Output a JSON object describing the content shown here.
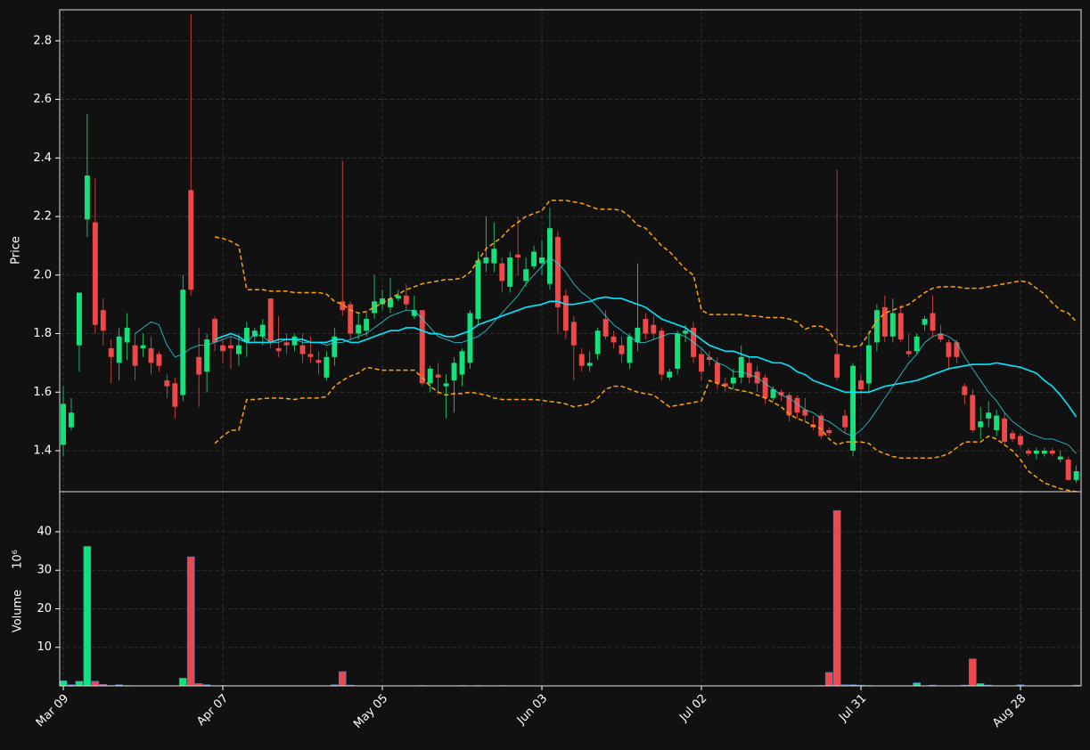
{
  "chart_data": {
    "type": "candlestick",
    "ylabel": "Price",
    "y2label": "Volume",
    "y2_offset": "10⁶",
    "up_color": "#16e07a",
    "down_color": "#ef4848",
    "volume_edge_color": "#4a78c8",
    "grid": true,
    "xlim": [
      -0.45,
      127.6
    ],
    "xticks": [
      {
        "value": 0,
        "label": "Mar 09"
      },
      {
        "value": 20,
        "label": "Apr 07"
      },
      {
        "value": 40,
        "label": "May 05"
      },
      {
        "value": 60,
        "label": "Jun 03"
      },
      {
        "value": 80,
        "label": "Jul 02"
      },
      {
        "value": 100,
        "label": "Jul 31"
      },
      {
        "value": 120,
        "label": "Aug 28"
      }
    ],
    "ylim": [
      1.26,
      2.906
    ],
    "yticks": [
      1.4,
      1.6,
      1.8,
      {
        "value": 2,
        "label": "2.0"
      },
      2.2,
      2.4,
      2.6,
      2.8
    ],
    "y2lim": [
      0,
      50.4
    ],
    "y2ticks": [
      10,
      20,
      30,
      40
    ],
    "open": [
      1.42,
      1.48,
      1.76,
      2.19,
      2.18,
      1.88,
      1.75,
      1.7,
      1.77,
      1.76,
      1.75,
      1.75,
      1.73,
      1.64,
      1.63,
      1.59,
      2.29,
      1.72,
      1.67,
      1.85,
      1.76,
      1.76,
      1.73,
      1.77,
      1.79,
      1.79,
      1.92,
      1.75,
      1.77,
      1.76,
      1.76,
      1.73,
      1.71,
      1.65,
      1.72,
      1.91,
      1.9,
      1.8,
      1.81,
      1.87,
      1.9,
      1.89,
      1.92,
      1.93,
      1.86,
      1.88,
      1.63,
      1.66,
      1.62,
      1.64,
      1.66,
      1.7,
      1.85,
      2.04,
      2.04,
      2.04,
      1.96,
      2.07,
      1.98,
      2.03,
      2.04,
      1.97,
      2.13,
      1.93,
      1.84,
      1.73,
      1.69,
      1.73,
      1.85,
      1.79,
      1.76,
      1.7,
      1.77,
      1.85,
      1.83,
      1.81,
      1.65,
      1.68,
      1.8,
      1.82,
      1.73,
      1.72,
      1.7,
      1.63,
      1.63,
      1.65,
      1.7,
      1.67,
      1.65,
      1.58,
      1.6,
      1.59,
      1.58,
      1.54,
      1.49,
      1.52,
      1.47,
      1.73,
      1.52,
      1.4,
      1.64,
      1.63,
      1.77,
      1.89,
      1.79,
      1.87,
      1.74,
      1.74,
      1.83,
      1.87,
      1.8,
      1.77,
      1.77,
      1.62,
      1.59,
      1.48,
      1.51,
      1.47,
      1.51,
      1.46,
      1.45,
      1.4,
      1.39,
      1.39,
      1.4,
      1.37,
      1.37,
      1.3
    ],
    "high": [
      1.62,
      1.58,
      1.94,
      2.55,
      2.33,
      1.92,
      1.78,
      1.82,
      1.87,
      1.8,
      1.8,
      1.79,
      1.74,
      1.66,
      1.65,
      2.0,
      2.89,
      1.82,
      1.8,
      1.86,
      1.78,
      1.79,
      1.8,
      1.84,
      1.82,
      1.85,
      1.92,
      1.86,
      1.8,
      1.8,
      1.8,
      1.79,
      1.74,
      1.74,
      1.82,
      2.39,
      1.91,
      1.87,
      1.87,
      2.0,
      1.95,
      1.99,
      1.95,
      1.97,
      1.93,
      1.88,
      1.69,
      1.7,
      1.66,
      1.72,
      1.75,
      1.88,
      2.08,
      2.2,
      2.18,
      2.06,
      2.08,
      2.2,
      2.06,
      2.1,
      2.12,
      2.23,
      2.15,
      1.95,
      1.86,
      1.75,
      1.74,
      1.82,
      1.88,
      1.81,
      1.79,
      1.8,
      2.04,
      1.87,
      1.86,
      1.82,
      1.68,
      1.81,
      1.83,
      1.84,
      1.75,
      1.74,
      1.72,
      1.65,
      1.68,
      1.76,
      1.72,
      1.69,
      1.66,
      1.62,
      1.61,
      1.6,
      1.59,
      1.58,
      1.52,
      1.53,
      1.48,
      2.36,
      1.54,
      1.7,
      1.66,
      1.81,
      1.9,
      1.93,
      1.92,
      1.9,
      1.8,
      1.8,
      1.86,
      1.93,
      1.83,
      1.78,
      1.78,
      1.63,
      1.61,
      1.55,
      1.57,
      1.54,
      1.53,
      1.47,
      1.46,
      1.41,
      1.41,
      1.41,
      1.41,
      1.4,
      1.38,
      1.35
    ],
    "low": [
      1.38,
      1.47,
      1.67,
      2.13,
      1.8,
      1.76,
      1.63,
      1.64,
      1.71,
      1.64,
      1.72,
      1.66,
      1.67,
      1.58,
      1.51,
      1.57,
      1.93,
      1.55,
      1.6,
      1.74,
      1.7,
      1.68,
      1.69,
      1.72,
      1.77,
      1.76,
      1.75,
      1.72,
      1.73,
      1.74,
      1.7,
      1.7,
      1.66,
      1.64,
      1.69,
      1.86,
      1.78,
      1.78,
      1.79,
      1.85,
      1.88,
      1.87,
      1.91,
      1.88,
      1.85,
      1.62,
      1.6,
      1.59,
      1.51,
      1.53,
      1.62,
      1.68,
      1.83,
      2.01,
      2.01,
      1.94,
      1.94,
      2.0,
      1.96,
      2.02,
      2.0,
      1.95,
      1.8,
      1.78,
      1.64,
      1.67,
      1.67,
      1.71,
      1.78,
      1.75,
      1.7,
      1.68,
      1.74,
      1.78,
      1.78,
      1.64,
      1.64,
      1.66,
      1.77,
      1.7,
      1.64,
      1.69,
      1.61,
      1.6,
      1.61,
      1.63,
      1.63,
      1.6,
      1.56,
      1.57,
      1.57,
      1.5,
      1.51,
      1.5,
      1.47,
      1.44,
      1.45,
      1.64,
      1.46,
      1.38,
      1.59,
      1.6,
      1.74,
      1.77,
      1.77,
      1.77,
      1.72,
      1.73,
      1.81,
      1.79,
      1.77,
      1.68,
      1.7,
      1.56,
      1.46,
      1.44,
      1.48,
      1.45,
      1.42,
      1.43,
      1.41,
      1.38,
      1.37,
      1.38,
      1.38,
      1.36,
      1.3,
      1.29
    ],
    "close": [
      1.56,
      1.53,
      1.94,
      2.34,
      1.83,
      1.81,
      1.72,
      1.79,
      1.82,
      1.69,
      1.76,
      1.7,
      1.69,
      1.62,
      1.55,
      1.95,
      1.95,
      1.66,
      1.78,
      1.77,
      1.74,
      1.75,
      1.76,
      1.82,
      1.81,
      1.83,
      1.77,
      1.74,
      1.76,
      1.79,
      1.73,
      1.72,
      1.7,
      1.72,
      1.79,
      1.88,
      1.8,
      1.83,
      1.85,
      1.91,
      1.92,
      1.92,
      1.93,
      1.9,
      1.88,
      1.63,
      1.68,
      1.65,
      1.63,
      1.7,
      1.74,
      1.87,
      2.05,
      2.06,
      2.09,
      1.98,
      2.06,
      2.06,
      2.02,
      2.08,
      2.06,
      2.16,
      1.89,
      1.81,
      1.76,
      1.69,
      1.7,
      1.81,
      1.79,
      1.77,
      1.73,
      1.79,
      1.82,
      1.8,
      1.8,
      1.66,
      1.67,
      1.8,
      1.81,
      1.72,
      1.67,
      1.71,
      1.63,
      1.62,
      1.65,
      1.72,
      1.65,
      1.63,
      1.58,
      1.61,
      1.59,
      1.52,
      1.53,
      1.52,
      1.48,
      1.45,
      1.46,
      1.65,
      1.48,
      1.69,
      1.61,
      1.76,
      1.88,
      1.79,
      1.87,
      1.78,
      1.73,
      1.79,
      1.85,
      1.81,
      1.78,
      1.72,
      1.72,
      1.59,
      1.47,
      1.5,
      1.53,
      1.52,
      1.43,
      1.44,
      1.42,
      1.39,
      1.4,
      1.4,
      1.39,
      1.38,
      1.3,
      1.33
    ],
    "volume": [
      1.3,
      0.3,
      1.2,
      36.2,
      1.2,
      0.4,
      0.1,
      0.3,
      0.1,
      0.05,
      0.05,
      0.05,
      0.05,
      0.05,
      0.05,
      2.0,
      33.5,
      0.6,
      0.3,
      0.05,
      0.1,
      0.05,
      0.05,
      0.05,
      0.05,
      0.05,
      0.05,
      0.05,
      0.05,
      0.05,
      0.05,
      0.05,
      0.05,
      0.05,
      0.3,
      3.7,
      0.2,
      0.05,
      0.05,
      0.05,
      0.05,
      0.05,
      0.05,
      0.05,
      0.05,
      0.1,
      0.05,
      0.05,
      0.05,
      0.05,
      0.1,
      0.05,
      0.1,
      0.05,
      0.05,
      0.1,
      0.05,
      0.05,
      0.05,
      0.05,
      0.05,
      0.05,
      0.05,
      0.05,
      0.05,
      0.05,
      0.05,
      0.05,
      0.05,
      0.05,
      0.05,
      0.05,
      0.05,
      0.05,
      0.05,
      0.05,
      0.05,
      0.05,
      0.05,
      0.05,
      0.05,
      0.05,
      0.05,
      0.05,
      0.05,
      0.05,
      0.05,
      0.05,
      0.05,
      0.05,
      0.05,
      0.05,
      0.05,
      0.05,
      0.05,
      0.1,
      3.5,
      45.5,
      0.3,
      0.3,
      0.2,
      0.1,
      0.05,
      0.05,
      0.05,
      0.05,
      0.05,
      0.8,
      0.05,
      0.2,
      0.05,
      0.05,
      0.05,
      0.2,
      7.0,
      0.6,
      0.2,
      0.05,
      0.05,
      0.05,
      0.3,
      0.05,
      0.05,
      0.05,
      0.05,
      0.05,
      0.05,
      0.2
    ],
    "lines": [
      {
        "color": "#26d4e0",
        "width": 0.8,
        "dashed": false,
        "values": [
          null,
          null,
          null,
          null,
          null,
          null,
          null,
          null,
          null,
          1.8,
          1.82,
          1.84,
          1.83,
          1.76,
          1.72,
          1.73,
          1.75,
          1.76,
          1.76,
          1.77,
          1.78,
          1.79,
          1.78,
          1.77,
          1.8,
          1.79,
          1.77,
          1.77,
          1.78,
          1.78,
          1.77,
          1.77,
          1.77,
          1.76,
          1.77,
          1.77,
          1.78,
          1.79,
          1.8,
          1.82,
          1.84,
          1.86,
          1.87,
          1.88,
          1.88,
          1.85,
          1.82,
          1.79,
          1.78,
          1.77,
          1.77,
          1.78,
          1.79,
          1.81,
          1.84,
          1.87,
          1.9,
          1.93,
          1.97,
          2.0,
          2.03,
          2.06,
          2.04,
          2.01,
          1.97,
          1.94,
          1.92,
          1.89,
          1.86,
          1.83,
          1.81,
          1.79,
          1.77,
          1.77,
          1.78,
          1.79,
          1.8,
          1.8,
          1.79,
          1.77,
          1.75,
          1.72,
          1.7,
          1.69,
          1.67,
          1.67,
          1.66,
          1.65,
          1.63,
          1.61,
          1.59,
          1.58,
          1.56,
          1.54,
          1.53,
          1.51,
          1.5,
          1.48,
          1.46,
          1.45,
          1.47,
          1.5,
          1.54,
          1.58,
          1.62,
          1.66,
          1.7,
          1.73,
          1.77,
          1.79,
          1.8,
          1.79,
          1.77,
          1.72,
          1.68,
          1.64,
          1.6,
          1.57,
          1.53,
          1.5,
          1.48,
          1.46,
          1.45,
          1.44,
          1.44,
          1.43,
          1.42,
          1.39
        ]
      },
      {
        "color": "#00eaff",
        "width": 1.6,
        "dashed": false,
        "values": [
          null,
          null,
          null,
          null,
          null,
          null,
          null,
          null,
          null,
          null,
          null,
          null,
          null,
          null,
          null,
          null,
          null,
          null,
          null,
          1.78,
          1.79,
          1.8,
          1.79,
          1.77,
          1.77,
          1.77,
          1.77,
          1.78,
          1.78,
          1.78,
          1.78,
          1.77,
          1.77,
          1.77,
          1.78,
          1.78,
          1.77,
          1.77,
          1.78,
          1.79,
          1.8,
          1.81,
          1.81,
          1.82,
          1.82,
          1.81,
          1.8,
          1.8,
          1.79,
          1.79,
          1.8,
          1.81,
          1.83,
          1.84,
          1.85,
          1.86,
          1.87,
          1.88,
          1.89,
          1.895,
          1.9,
          1.91,
          1.91,
          1.9,
          1.9,
          1.905,
          1.91,
          1.92,
          1.925,
          1.92,
          1.92,
          1.91,
          1.9,
          1.89,
          1.87,
          1.85,
          1.84,
          1.83,
          1.82,
          1.8,
          1.78,
          1.76,
          1.75,
          1.74,
          1.74,
          1.73,
          1.72,
          1.72,
          1.71,
          1.7,
          1.7,
          1.69,
          1.67,
          1.66,
          1.64,
          1.63,
          1.62,
          1.61,
          1.6,
          1.6,
          1.6,
          1.6,
          1.61,
          1.62,
          1.625,
          1.63,
          1.635,
          1.64,
          1.65,
          1.66,
          1.67,
          1.68,
          1.685,
          1.69,
          1.695,
          1.695,
          1.695,
          1.7,
          1.695,
          1.69,
          1.685,
          1.675,
          1.665,
          1.64,
          1.62,
          1.59,
          1.555,
          1.515
        ]
      },
      {
        "color": "#ffa500",
        "width": 1.5,
        "dashed": true,
        "values": [
          null,
          null,
          null,
          null,
          null,
          null,
          null,
          null,
          null,
          null,
          null,
          null,
          null,
          null,
          null,
          null,
          null,
          null,
          null,
          2.13,
          2.125,
          2.115,
          2.1,
          1.95,
          1.95,
          1.95,
          1.945,
          1.945,
          1.945,
          1.94,
          1.94,
          1.94,
          1.94,
          1.935,
          1.91,
          1.9,
          1.88,
          1.87,
          1.875,
          1.89,
          1.905,
          1.92,
          1.935,
          1.95,
          1.96,
          1.97,
          1.975,
          1.98,
          1.985,
          1.985,
          1.99,
          2.01,
          2.05,
          2.09,
          2.11,
          2.13,
          2.16,
          2.18,
          2.2,
          2.21,
          2.22,
          2.255,
          2.255,
          2.255,
          2.25,
          2.245,
          2.235,
          2.225,
          2.225,
          2.225,
          2.22,
          2.2,
          2.17,
          2.16,
          2.13,
          2.1,
          2.08,
          2.05,
          2.02,
          2.0,
          1.88,
          1.865,
          1.865,
          1.865,
          1.865,
          1.865,
          1.86,
          1.86,
          1.855,
          1.855,
          1.855,
          1.85,
          1.84,
          1.815,
          1.825,
          1.825,
          1.81,
          1.765,
          1.76,
          1.755,
          1.76,
          1.8,
          1.845,
          1.87,
          1.88,
          1.89,
          1.9,
          1.92,
          1.94,
          1.955,
          1.96,
          1.96,
          1.96,
          1.955,
          1.955,
          1.955,
          1.96,
          1.965,
          1.97,
          1.975,
          1.98,
          1.975,
          1.955,
          1.935,
          1.905,
          1.88,
          1.87,
          1.84
        ]
      },
      {
        "color": "#ffa500",
        "width": 1.5,
        "dashed": true,
        "values": [
          null,
          null,
          null,
          null,
          null,
          null,
          null,
          null,
          null,
          null,
          null,
          null,
          null,
          null,
          null,
          null,
          null,
          null,
          null,
          1.425,
          1.45,
          1.47,
          1.47,
          1.575,
          1.575,
          1.578,
          1.58,
          1.58,
          1.578,
          1.575,
          1.58,
          1.58,
          1.58,
          1.585,
          1.62,
          1.64,
          1.655,
          1.665,
          1.685,
          1.68,
          1.675,
          1.675,
          1.675,
          1.675,
          1.675,
          1.65,
          1.62,
          1.6,
          1.59,
          1.595,
          1.595,
          1.6,
          1.595,
          1.59,
          1.58,
          1.575,
          1.575,
          1.575,
          1.575,
          1.575,
          1.572,
          1.568,
          1.565,
          1.56,
          1.55,
          1.555,
          1.56,
          1.58,
          1.61,
          1.62,
          1.62,
          1.61,
          1.6,
          1.595,
          1.59,
          1.57,
          1.55,
          1.555,
          1.56,
          1.565,
          1.57,
          1.64,
          1.63,
          1.62,
          1.61,
          1.605,
          1.6,
          1.59,
          1.58,
          1.565,
          1.55,
          1.525,
          1.51,
          1.5,
          1.485,
          1.475,
          1.44,
          1.42,
          1.43,
          1.43,
          1.43,
          1.425,
          1.4,
          1.39,
          1.38,
          1.375,
          1.375,
          1.375,
          1.375,
          1.375,
          1.38,
          1.39,
          1.41,
          1.43,
          1.43,
          1.43,
          1.45,
          1.44,
          1.42,
          1.4,
          1.37,
          1.33,
          1.31,
          1.29,
          1.28,
          1.27,
          1.265,
          1.26
        ]
      }
    ]
  }
}
